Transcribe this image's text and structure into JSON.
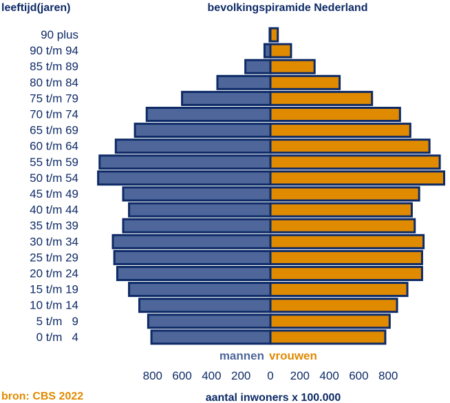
{
  "chart_data": {
    "type": "bar",
    "orientation": "horizontal-pyramid",
    "title": "bevolkingspiramide Nederland",
    "ylabel": "leeftijd(jaren)",
    "xlabel": "aantal inwoners x 100.000",
    "source": "bron: CBS 2022",
    "categories": [
      "0 t/m   4",
      "5 t/m   9",
      "10 t/m 14",
      "15 t/m 19",
      "20 t/m 24",
      "25 t/m 29",
      "30 t/m 34",
      "35 t/m 39",
      "40 t/m 44",
      "45 t/m 49",
      "50 t/m 54",
      "55 t/m 59",
      "60 t/m 64",
      "65 t/m 69",
      "70 t/m 74",
      "75 t/m 79",
      "80 t/m 84",
      "85 t/m 89",
      "90 t/m 94",
      "90 plus"
    ],
    "series": [
      {
        "name": "mannen",
        "color": "#4e6699",
        "values": [
          808,
          830,
          890,
          960,
          1040,
          1060,
          1070,
          1000,
          960,
          1000,
          1170,
          1160,
          1050,
          920,
          840,
          600,
          360,
          170,
          40,
          5
        ]
      },
      {
        "name": "vrouwen",
        "color": "#e08a00",
        "values": [
          780,
          810,
          860,
          930,
          1030,
          1030,
          1040,
          980,
          960,
          1010,
          1180,
          1150,
          1080,
          950,
          880,
          690,
          470,
          300,
          140,
          50
        ]
      }
    ],
    "xticks_left": [
      "800",
      "600",
      "400",
      "200",
      "0"
    ],
    "xticks_right": [
      "200",
      "400",
      "600",
      "800"
    ],
    "xlim": [
      0,
      1200
    ],
    "bar_edge_color": "#0d2a66"
  }
}
